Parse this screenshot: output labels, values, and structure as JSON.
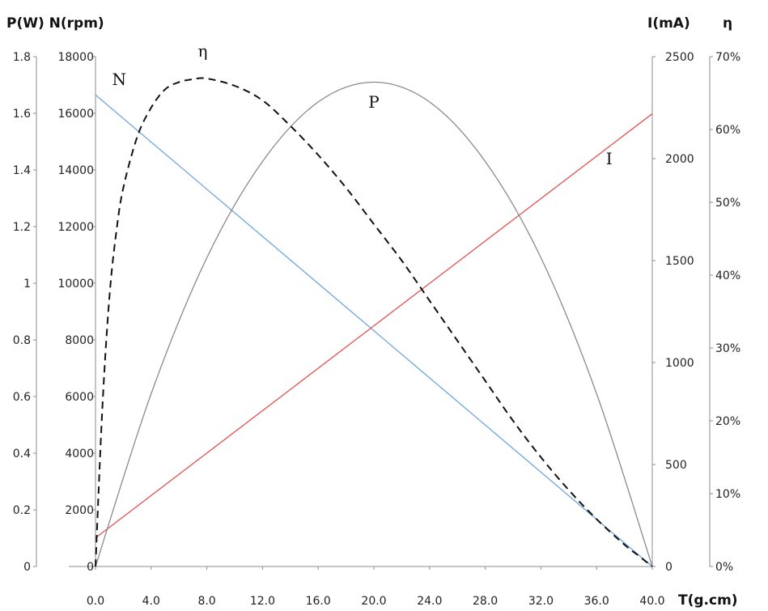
{
  "chart_data": {
    "type": "line",
    "x_title": "T(g.cm)",
    "left_title": "P(W) N(rpm)",
    "current_title": "I(mA)",
    "eff_title": "η",
    "x_ticks": [
      "0.0",
      "4.0",
      "8.0",
      "12.0",
      "16.0",
      "20.0",
      "24.0",
      "28.0",
      "32.0",
      "36.0",
      "40.0"
    ],
    "power_ticks": [
      "0",
      "0.2",
      "0.4",
      "0.6",
      "0.8",
      "1",
      "1.2",
      "1.4",
      "1.6",
      "1.8"
    ],
    "speed_ticks": [
      "0",
      "2000",
      "4000",
      "6000",
      "8000",
      "10000",
      "12000",
      "14000",
      "16000",
      "18000"
    ],
    "current_ticks": [
      "0",
      "500",
      "1000",
      "1500",
      "2000",
      "2500"
    ],
    "eff_ticks": [
      "0%",
      "10%",
      "20%",
      "30%",
      "40%",
      "50%",
      "60%",
      "70%"
    ],
    "xlim": [
      0,
      40
    ],
    "power_lim": [
      0,
      1.8
    ],
    "speed_lim": [
      0,
      18000
    ],
    "current_lim": [
      0,
      2500
    ],
    "eff_lim": [
      0,
      70
    ],
    "series": [
      {
        "name": "N",
        "axis": "speed",
        "color": "#6ea6dd",
        "dash": false,
        "x": [
          0,
          40
        ],
        "y": [
          16650,
          0
        ]
      },
      {
        "name": "I",
        "axis": "current",
        "color": "#e0524f",
        "dash": false,
        "x": [
          0,
          40
        ],
        "y": [
          140,
          2220
        ]
      },
      {
        "name": "P",
        "axis": "power",
        "color": "#8a8a8a",
        "dash": false,
        "x": [
          0,
          4,
          8,
          12,
          16,
          20,
          24,
          28,
          32,
          36,
          40
        ],
        "y": [
          0,
          0.61,
          1.09,
          1.43,
          1.64,
          1.71,
          1.64,
          1.43,
          1.09,
          0.61,
          0
        ]
      },
      {
        "name": "η",
        "axis": "eff",
        "color": "#111111",
        "dash": true,
        "x": [
          0,
          0.5,
          1,
          1.5,
          2,
          3,
          4,
          5,
          6,
          7,
          8,
          10,
          12,
          14,
          16,
          18,
          20,
          22,
          24,
          26,
          28,
          30,
          32,
          34,
          36,
          38,
          39,
          40
        ],
        "y": [
          0,
          22,
          37,
          46,
          52,
          59,
          63,
          65.5,
          66.5,
          66.9,
          67,
          66,
          64,
          60.5,
          56.5,
          52,
          47,
          42,
          36.5,
          31,
          25.5,
          20,
          15,
          10.5,
          6.5,
          3,
          1.5,
          0
        ]
      }
    ],
    "labels": [
      {
        "text": "N",
        "x": 1.7,
        "y": 17000,
        "axis": "speed"
      },
      {
        "text": "η",
        "x": 7.7,
        "y": 18000,
        "axis": "speed"
      },
      {
        "text": "P",
        "x": 20.0,
        "y": 16200,
        "axis": "speed"
      },
      {
        "text": "I",
        "x": 36.9,
        "y": 14200,
        "axis": "speed"
      }
    ]
  }
}
